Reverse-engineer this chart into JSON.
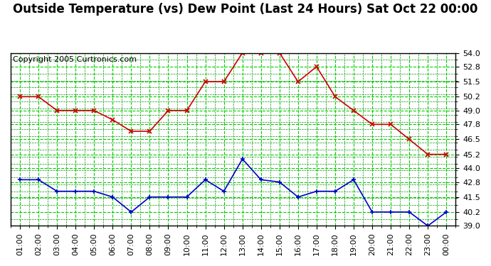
{
  "title": "Outside Temperature (vs) Dew Point (Last 24 Hours) Sat Oct 22 00:00",
  "copyright": "Copyright 2005 Curtronics.com",
  "x_labels": [
    "01:00",
    "02:00",
    "03:00",
    "04:00",
    "05:00",
    "06:00",
    "07:00",
    "08:00",
    "09:00",
    "10:00",
    "11:00",
    "12:00",
    "13:00",
    "14:00",
    "15:00",
    "16:00",
    "17:00",
    "18:00",
    "19:00",
    "20:00",
    "21:00",
    "22:00",
    "23:00",
    "00:00"
  ],
  "temp_data": [
    50.2,
    50.2,
    49.0,
    49.0,
    49.0,
    48.2,
    47.2,
    47.2,
    49.0,
    49.0,
    51.5,
    51.5,
    54.0,
    54.0,
    54.0,
    51.5,
    52.8,
    50.2,
    49.0,
    47.8,
    47.8,
    46.5,
    45.2,
    45.2
  ],
  "dew_data": [
    43.0,
    43.0,
    42.0,
    42.0,
    42.0,
    41.5,
    40.2,
    41.5,
    41.5,
    41.5,
    43.0,
    42.0,
    44.8,
    43.0,
    42.8,
    41.5,
    42.0,
    42.0,
    43.0,
    40.2,
    40.2,
    40.2,
    39.0,
    40.2
  ],
  "temp_color": "#cc0000",
  "dew_color": "#0000cc",
  "grid_color_major": "#00cc00",
  "grid_color_minor": "#009900",
  "bg_color": "#ffffff",
  "plot_bg_color": "#ffffff",
  "ylim_min": 39.0,
  "ylim_max": 54.0,
  "yticks": [
    39.0,
    40.2,
    41.5,
    42.8,
    44.0,
    45.2,
    46.5,
    47.8,
    49.0,
    50.2,
    51.5,
    52.8,
    54.0
  ],
  "title_fontsize": 12,
  "copyright_fontsize": 8,
  "tick_label_fontsize": 8,
  "axis_label_color": "#000000",
  "border_color": "#000000"
}
